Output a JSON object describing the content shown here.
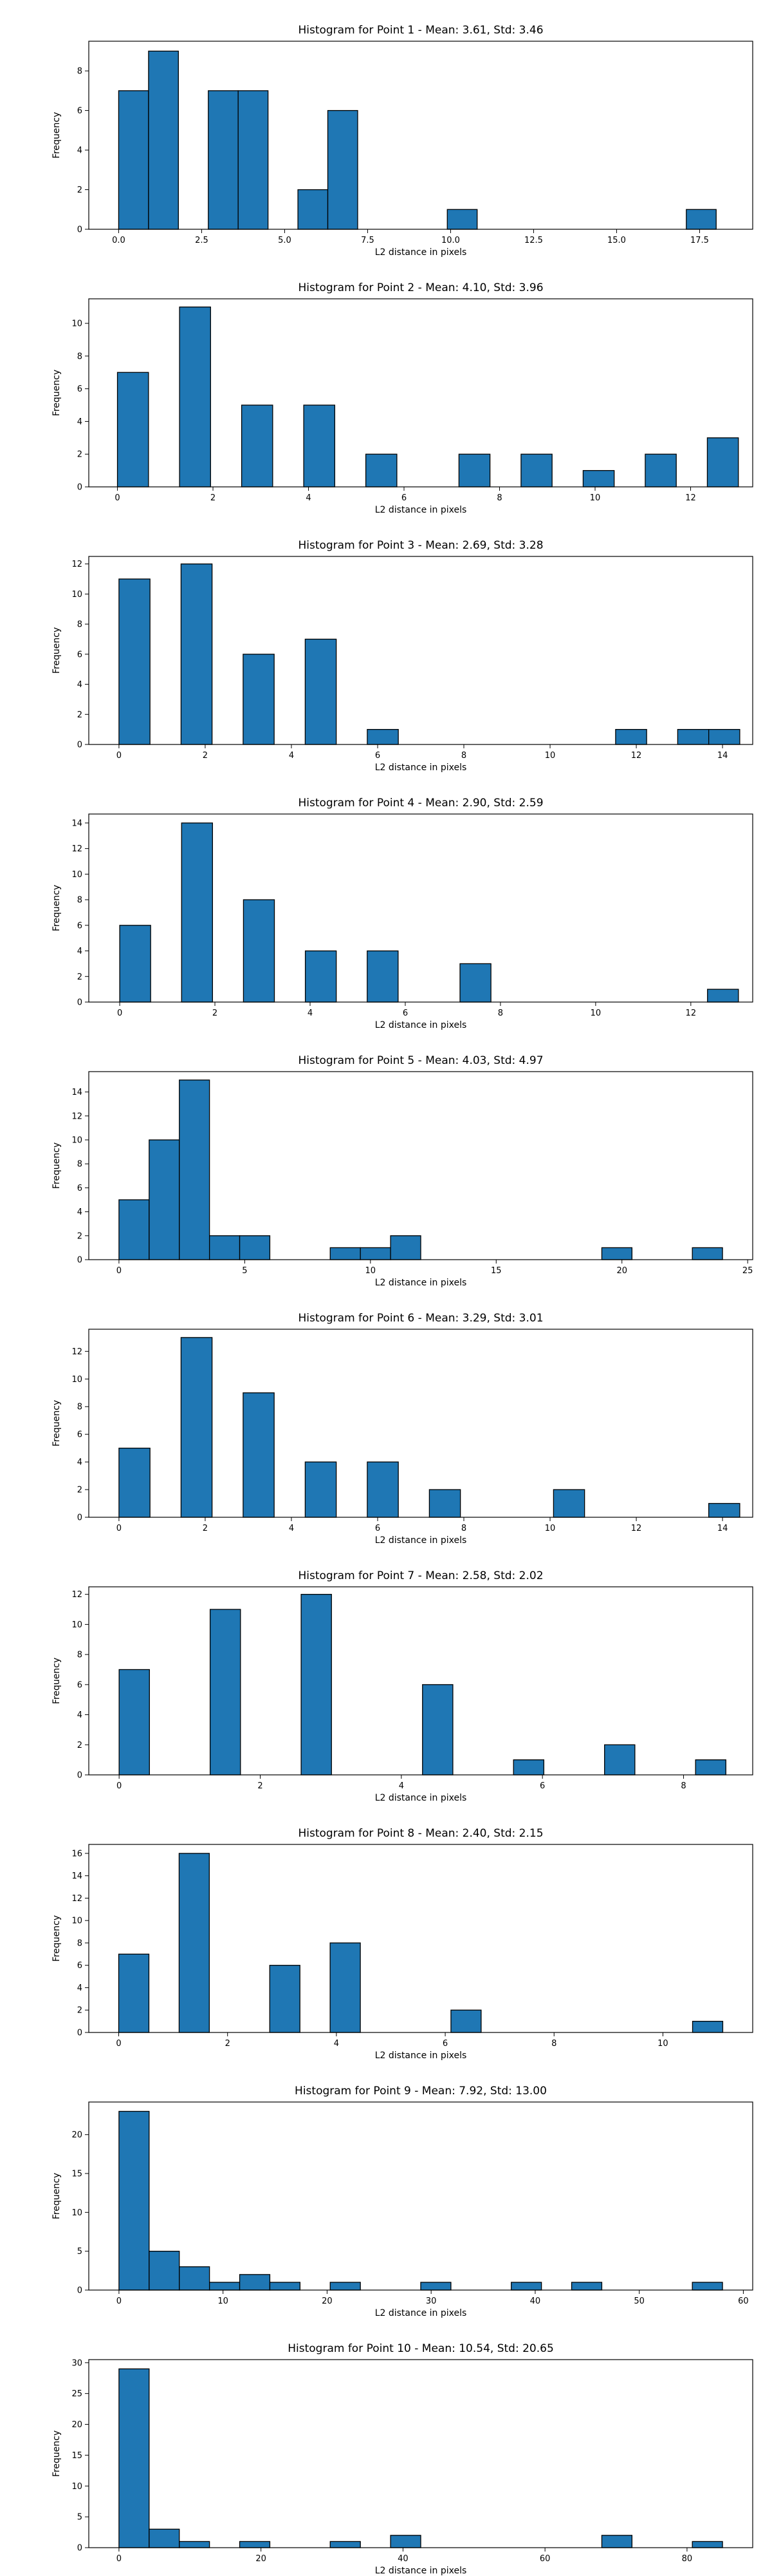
{
  "chart_data": [
    {
      "type": "bar",
      "title": "Histogram for Point 1 - Mean: 3.61, Std: 3.46",
      "xlabel": "L2 distance in pixels",
      "ylabel": "Frequency",
      "color": "#1f77b4",
      "edgecolor": "#000000",
      "xlim": [
        -0.9,
        19.1
      ],
      "ylim": [
        0,
        9.5
      ],
      "xticks": [
        0.0,
        2.5,
        5.0,
        7.5,
        10.0,
        12.5,
        15.0,
        17.5
      ],
      "xtick_labels": [
        "0.0",
        "2.5",
        "5.0",
        "7.5",
        "10.0",
        "12.5",
        "15.0",
        "17.5"
      ],
      "yticks": [
        0,
        2,
        4,
        6,
        8
      ],
      "yticklabels": [
        "0",
        "2",
        "4",
        "6",
        "8"
      ],
      "bin_start": 0.0,
      "bin_width": 0.9,
      "values": [
        7,
        9,
        0,
        7,
        7,
        0,
        2,
        6,
        0,
        0,
        0,
        1,
        0,
        0,
        0,
        0,
        0,
        0,
        0,
        1
      ]
    },
    {
      "type": "bar",
      "title": "Histogram for Point 2 - Mean: 4.10, Std: 3.96",
      "xlabel": "L2 distance in pixels",
      "ylabel": "Frequency",
      "color": "#1f77b4",
      "edgecolor": "#000000",
      "xlim": [
        -0.6,
        13.3
      ],
      "ylim": [
        0,
        11.5
      ],
      "xticks": [
        0,
        2,
        4,
        6,
        8,
        10,
        12
      ],
      "xtick_labels": [
        "0",
        "2",
        "4",
        "6",
        "8",
        "10",
        "12"
      ],
      "yticks": [
        0,
        2,
        4,
        6,
        8,
        10
      ],
      "yticklabels": [
        "0",
        "2",
        "4",
        "6",
        "8",
        "10"
      ],
      "bin_start": 0.0,
      "bin_width": 0.65,
      "values": [
        7,
        0,
        11,
        0,
        5,
        0,
        5,
        0,
        2,
        0,
        0,
        2,
        0,
        2,
        0,
        1,
        0,
        2,
        0,
        3
      ]
    },
    {
      "type": "bar",
      "title": "Histogram for Point 3 - Mean: 2.69, Std: 3.28",
      "xlabel": "L2 distance in pixels",
      "ylabel": "Frequency",
      "color": "#1f77b4",
      "edgecolor": "#000000",
      "xlim": [
        -0.7,
        14.7
      ],
      "ylim": [
        0,
        12.5
      ],
      "xticks": [
        0,
        2,
        4,
        6,
        8,
        10,
        12,
        14
      ],
      "xtick_labels": [
        "0",
        "2",
        "4",
        "6",
        "8",
        "10",
        "12",
        "14"
      ],
      "yticks": [
        0,
        2,
        4,
        6,
        8,
        10,
        12
      ],
      "yticklabels": [
        "0",
        "2",
        "4",
        "6",
        "8",
        "10",
        "12"
      ],
      "bin_start": 0.0,
      "bin_width": 0.72,
      "values": [
        11,
        0,
        12,
        0,
        6,
        0,
        7,
        0,
        1,
        0,
        0,
        0,
        0,
        0,
        0,
        0,
        1,
        0,
        1,
        1
      ]
    },
    {
      "type": "bar",
      "title": "Histogram for Point 4 - Mean: 2.90, Std: 2.59",
      "xlabel": "L2 distance in pixels",
      "ylabel": "Frequency",
      "color": "#1f77b4",
      "edgecolor": "#000000",
      "xlim": [
        -0.65,
        13.3
      ],
      "ylim": [
        0,
        14.7
      ],
      "xticks": [
        0,
        2,
        4,
        6,
        8,
        10,
        12
      ],
      "xtick_labels": [
        "0",
        "2",
        "4",
        "6",
        "8",
        "10",
        "12"
      ],
      "yticks": [
        0,
        2,
        4,
        6,
        8,
        10,
        12,
        14
      ],
      "yticklabels": [
        "0",
        "2",
        "4",
        "6",
        "8",
        "10",
        "12",
        "14"
      ],
      "bin_start": 0.0,
      "bin_width": 0.65,
      "values": [
        6,
        0,
        14,
        0,
        8,
        0,
        4,
        0,
        4,
        0,
        0,
        3,
        0,
        0,
        0,
        0,
        0,
        0,
        0,
        1
      ]
    },
    {
      "type": "bar",
      "title": "Histogram for Point 5 - Mean: 4.03, Std: 4.97",
      "xlabel": "L2 distance in pixels",
      "ylabel": "Frequency",
      "color": "#1f77b4",
      "edgecolor": "#000000",
      "xlim": [
        -1.2,
        25.2
      ],
      "ylim": [
        0,
        15.7
      ],
      "xticks": [
        0,
        5,
        10,
        15,
        20,
        25
      ],
      "xtick_labels": [
        "0",
        "5",
        "10",
        "15",
        "20",
        "25"
      ],
      "yticks": [
        0,
        2,
        4,
        6,
        8,
        10,
        12,
        14
      ],
      "yticklabels": [
        "0",
        "2",
        "4",
        "6",
        "8",
        "10",
        "12",
        "14"
      ],
      "bin_start": 0.0,
      "bin_width": 1.2,
      "values": [
        5,
        10,
        15,
        2,
        2,
        0,
        0,
        1,
        1,
        2,
        0,
        0,
        0,
        0,
        0,
        0,
        1,
        0,
        0,
        1
      ]
    },
    {
      "type": "bar",
      "title": "Histogram for Point 6 - Mean: 3.29, Std: 3.01",
      "xlabel": "L2 distance in pixels",
      "ylabel": "Frequency",
      "color": "#1f77b4",
      "edgecolor": "#000000",
      "xlim": [
        -0.7,
        14.7
      ],
      "ylim": [
        0,
        13.6
      ],
      "xticks": [
        0,
        2,
        4,
        6,
        8,
        10,
        12,
        14
      ],
      "xtick_labels": [
        "0",
        "2",
        "4",
        "6",
        "8",
        "10",
        "12",
        "14"
      ],
      "yticks": [
        0,
        2,
        4,
        6,
        8,
        10,
        12
      ],
      "yticklabels": [
        "0",
        "2",
        "4",
        "6",
        "8",
        "10",
        "12"
      ],
      "bin_start": 0.0,
      "bin_width": 0.72,
      "values": [
        5,
        0,
        13,
        0,
        9,
        0,
        4,
        0,
        4,
        0,
        2,
        0,
        0,
        0,
        2,
        0,
        0,
        0,
        0,
        1
      ]
    },
    {
      "type": "bar",
      "title": "Histogram for Point 7 - Mean: 2.58, Std: 2.02",
      "xlabel": "L2 distance in pixels",
      "ylabel": "Frequency",
      "color": "#1f77b4",
      "edgecolor": "#000000",
      "xlim": [
        -0.43,
        8.98
      ],
      "ylim": [
        0,
        12.5
      ],
      "xticks": [
        0,
        2,
        4,
        6,
        8
      ],
      "xtick_labels": [
        "0",
        "2",
        "4",
        "6",
        "8"
      ],
      "yticks": [
        0,
        2,
        4,
        6,
        8,
        10,
        12
      ],
      "yticklabels": [
        "0",
        "2",
        "4",
        "6",
        "8",
        "10",
        "12"
      ],
      "bin_start": 0.0,
      "bin_width": 0.43,
      "values": [
        7,
        0,
        0,
        11,
        0,
        0,
        12,
        0,
        0,
        0,
        6,
        0,
        0,
        1,
        0,
        0,
        2,
        0,
        0,
        1
      ]
    },
    {
      "type": "bar",
      "title": "Histogram for Point 8 - Mean: 2.40, Std: 2.15",
      "xlabel": "L2 distance in pixels",
      "ylabel": "Frequency",
      "color": "#1f77b4",
      "edgecolor": "#000000",
      "xlim": [
        -0.55,
        11.65
      ],
      "ylim": [
        0,
        16.8
      ],
      "xticks": [
        0,
        2,
        4,
        6,
        8,
        10
      ],
      "xtick_labels": [
        "0",
        "2",
        "4",
        "6",
        "8",
        "10"
      ],
      "yticks": [
        0,
        2,
        4,
        6,
        8,
        10,
        12,
        14,
        16
      ],
      "yticklabels": [
        "0",
        "2",
        "4",
        "6",
        "8",
        "10",
        "12",
        "14",
        "16"
      ],
      "bin_start": 0.0,
      "bin_width": 0.555,
      "values": [
        7,
        0,
        16,
        0,
        0,
        6,
        0,
        8,
        0,
        0,
        0,
        2,
        0,
        0,
        0,
        0,
        0,
        0,
        0,
        1
      ]
    },
    {
      "type": "bar",
      "title": "Histogram for Point 9 - Mean: 7.92, Std: 13.00",
      "xlabel": "L2 distance in pixels",
      "ylabel": "Frequency",
      "color": "#1f77b4",
      "edgecolor": "#000000",
      "xlim": [
        -2.9,
        60.9
      ],
      "ylim": [
        0,
        24.2
      ],
      "xticks": [
        0,
        10,
        20,
        30,
        40,
        50,
        60
      ],
      "xtick_labels": [
        "0",
        "10",
        "20",
        "30",
        "40",
        "50",
        "60"
      ],
      "yticks": [
        0,
        5,
        10,
        15,
        20
      ],
      "yticklabels": [
        "0",
        "5",
        "10",
        "15",
        "20"
      ],
      "bin_start": 0.0,
      "bin_width": 2.9,
      "values": [
        23,
        5,
        3,
        1,
        2,
        1,
        0,
        1,
        0,
        0,
        1,
        0,
        0,
        1,
        0,
        1,
        0,
        0,
        0,
        1
      ]
    },
    {
      "type": "bar",
      "title": "Histogram for Point 10 - Mean: 10.54, Std: 20.65",
      "xlabel": "L2 distance in pixels",
      "ylabel": "Frequency",
      "color": "#1f77b4",
      "edgecolor": "#000000",
      "xlim": [
        -4.25,
        89.25
      ],
      "ylim": [
        0,
        30.5
      ],
      "xticks": [
        0,
        20,
        40,
        60,
        80
      ],
      "xtick_labels": [
        "0",
        "20",
        "40",
        "60",
        "80"
      ],
      "yticks": [
        0,
        5,
        10,
        15,
        20,
        25,
        30
      ],
      "yticklabels": [
        "0",
        "5",
        "10",
        "15",
        "20",
        "25",
        "30"
      ],
      "bin_start": 0.0,
      "bin_width": 4.25,
      "values": [
        29,
        3,
        1,
        0,
        1,
        0,
        0,
        1,
        0,
        2,
        0,
        0,
        0,
        0,
        0,
        0,
        2,
        0,
        0,
        1
      ]
    }
  ]
}
